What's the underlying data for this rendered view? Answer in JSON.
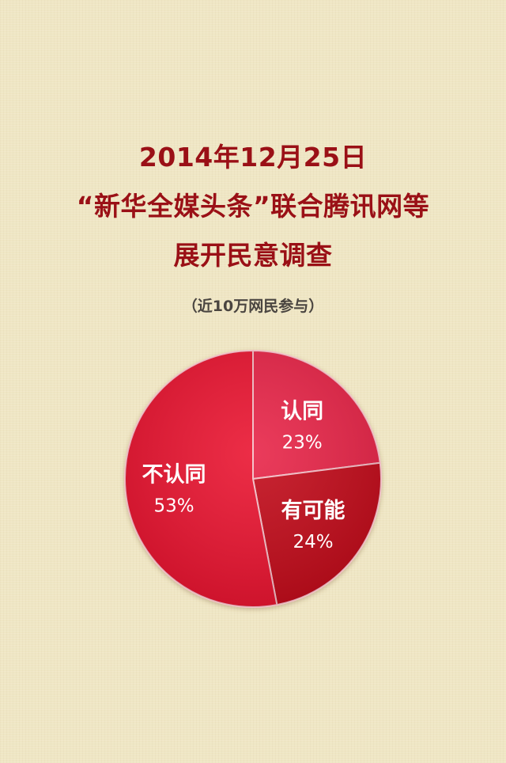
{
  "header": {
    "title_line1": "2014年12月25日",
    "title_line2": "“新华全媒头条”联合腾讯网等",
    "title_line3": "展开民意调查",
    "subtitle": "（近10万网民参与）"
  },
  "chart_data": {
    "type": "pie",
    "slices": [
      {
        "label": "认同",
        "value": 23,
        "display": "23%",
        "color": "#e8284a"
      },
      {
        "label": "有可能",
        "value": 24,
        "display": "24%",
        "color": "#c3081f"
      },
      {
        "label": "不认同",
        "value": 53,
        "display": "53%",
        "color": "#ea1232"
      }
    ]
  }
}
